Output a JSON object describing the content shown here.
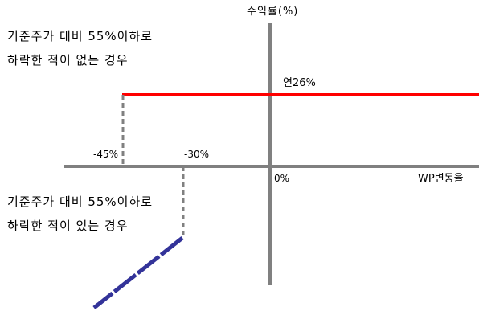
{
  "axes": {
    "y_label": "수익률(%)",
    "x_label": "WP변동율",
    "origin_label": "0%"
  },
  "thresholds": {
    "barrier_label": "-45%",
    "knee_label": "-30%"
  },
  "upper_payoff": {
    "label": "연26%",
    "note_line1": "기준주가 대비 55%이하로",
    "note_line2": "하락한 적이 없는 경우"
  },
  "lower_payoff": {
    "note_line1": "기준주가 대비 55%이하로",
    "note_line2": "하락한 적이 있는 경우"
  },
  "colors": {
    "axis": "#808080",
    "upper_line": "#ff0000",
    "lower_line": "#333399",
    "dashed_guide": "#808080"
  }
}
